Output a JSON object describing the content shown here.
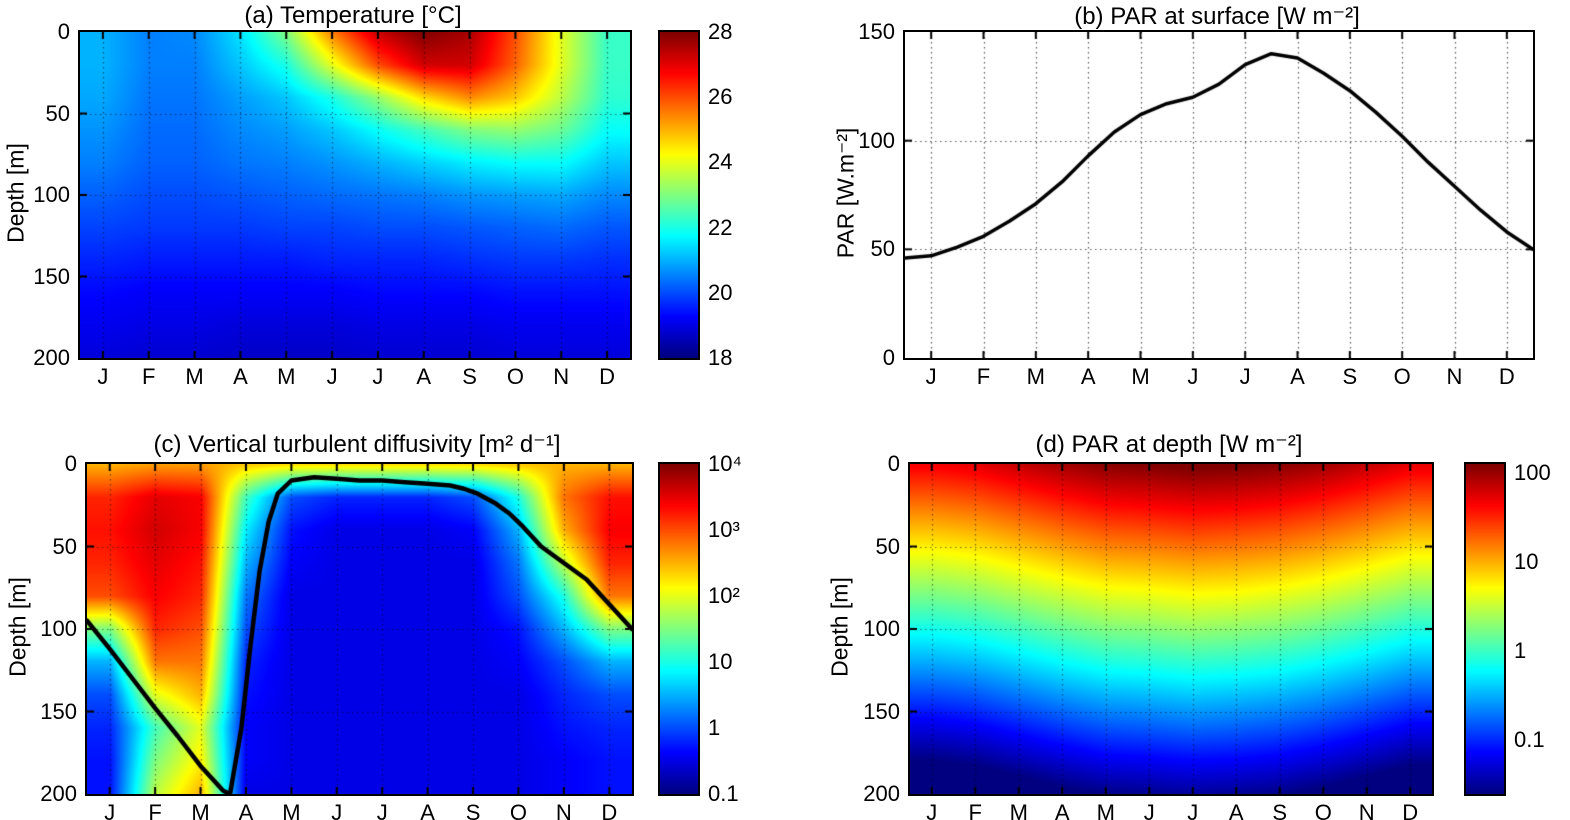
{
  "months": [
    "J",
    "F",
    "M",
    "A",
    "M",
    "J",
    "J",
    "A",
    "S",
    "O",
    "N",
    "D"
  ],
  "colors": {
    "frame": "#000000",
    "line": "#000000",
    "background": "#ffffff",
    "colormap": "jet"
  },
  "chart_data": [
    {
      "panel": "a",
      "type": "heatmap",
      "title": "(a) Temperature [°C]",
      "ylabel": "Depth [m]",
      "x_tick_labels": [
        "J",
        "F",
        "M",
        "A",
        "M",
        "J",
        "J",
        "A",
        "S",
        "O",
        "N",
        "D"
      ],
      "y_ticks": [
        0,
        50,
        100,
        150,
        200
      ],
      "ylim": [
        0,
        200
      ],
      "scale": "linear",
      "zlim": [
        18,
        28
      ],
      "colorbar_ticks": [
        28,
        26,
        24,
        22,
        20,
        18
      ],
      "depths": [
        0,
        20,
        40,
        60,
        80,
        100,
        120,
        140,
        160,
        180,
        200
      ],
      "values": [
        [
          21.0,
          20.5,
          20.6,
          21.5,
          23.0,
          25.5,
          27.3,
          28.0,
          27.6,
          26.0,
          24.0,
          22.3
        ],
        [
          21.0,
          20.5,
          20.5,
          21.2,
          22.0,
          24.0,
          26.0,
          27.2,
          27.2,
          25.8,
          24.0,
          22.3
        ],
        [
          20.9,
          20.4,
          20.4,
          20.8,
          21.2,
          22.0,
          23.2,
          24.6,
          25.4,
          24.8,
          23.6,
          22.2
        ],
        [
          20.7,
          20.3,
          20.3,
          20.6,
          20.8,
          21.2,
          21.8,
          22.4,
          23.0,
          23.2,
          22.8,
          21.8
        ],
        [
          20.5,
          20.2,
          20.2,
          20.4,
          20.5,
          20.7,
          21.0,
          21.3,
          21.6,
          21.8,
          21.8,
          21.2
        ],
        [
          20.2,
          20.0,
          20.0,
          20.1,
          20.2,
          20.3,
          20.4,
          20.5,
          20.7,
          20.8,
          20.9,
          20.6
        ],
        [
          19.9,
          19.8,
          19.8,
          19.8,
          19.9,
          19.9,
          20.0,
          20.0,
          20.1,
          20.2,
          20.3,
          20.1
        ],
        [
          19.6,
          19.5,
          19.5,
          19.5,
          19.5,
          19.6,
          19.6,
          19.6,
          19.7,
          19.8,
          19.8,
          19.7
        ],
        [
          19.3,
          19.2,
          19.2,
          19.2,
          19.2,
          19.2,
          19.3,
          19.3,
          19.3,
          19.4,
          19.4,
          19.4
        ],
        [
          19.1,
          19.0,
          19.0,
          18.9,
          18.9,
          18.9,
          19.0,
          19.0,
          19.0,
          19.1,
          19.1,
          19.1
        ],
        [
          18.9,
          18.8,
          18.8,
          18.7,
          18.7,
          18.7,
          18.8,
          18.8,
          18.8,
          18.9,
          18.9,
          18.9
        ]
      ]
    },
    {
      "panel": "b",
      "type": "line",
      "title": "(b) PAR at surface [W m⁻²]",
      "ylabel": "PAR [W.m⁻²]",
      "x_tick_labels": [
        "J",
        "F",
        "M",
        "A",
        "M",
        "J",
        "J",
        "A",
        "S",
        "O",
        "N",
        "D"
      ],
      "y_ticks": [
        0,
        50,
        100,
        150
      ],
      "ylim": [
        0,
        150
      ],
      "xlim": [
        0,
        12
      ],
      "x": [
        0,
        0.5,
        1,
        1.5,
        2,
        2.5,
        3,
        3.5,
        4,
        4.5,
        5,
        5.5,
        6,
        6.5,
        7,
        7.5,
        8,
        8.5,
        9,
        9.5,
        10,
        10.5,
        11,
        11.5,
        12
      ],
      "y": [
        46,
        47,
        51,
        56,
        63,
        71,
        81,
        93,
        104,
        112,
        117,
        120,
        126,
        135,
        140,
        138,
        131,
        123,
        113,
        102,
        90,
        79,
        68,
        58,
        50
      ]
    },
    {
      "panel": "c",
      "type": "heatmap",
      "title": "(c) Vertical turbulent diffusivity [m² d⁻¹]",
      "ylabel": "Depth [m]",
      "x_tick_labels": [
        "J",
        "F",
        "M",
        "A",
        "M",
        "J",
        "J",
        "A",
        "S",
        "O",
        "N",
        "D"
      ],
      "y_ticks": [
        0,
        50,
        100,
        150,
        200
      ],
      "ylim": [
        0,
        200
      ],
      "scale": "log10",
      "zlim_log10": [
        -1,
        4
      ],
      "colorbar_ticks_log10": [
        4,
        3,
        2,
        1,
        0,
        -1
      ],
      "colorbar_tick_labels": [
        "10⁴",
        "10³",
        "10²",
        "10",
        "1",
        "0.1"
      ],
      "depths": [
        0,
        20,
        40,
        60,
        80,
        100,
        120,
        140,
        160,
        180,
        200
      ],
      "values_log10": [
        [
          2.5,
          2.6,
          2.6,
          2.4,
          2.3,
          2.3,
          2.3,
          2.3,
          2.3,
          2.4,
          2.5,
          2.5
        ],
        [
          3.2,
          3.5,
          3.4,
          1.2,
          0.0,
          -0.2,
          -0.2,
          -0.2,
          0.0,
          1.0,
          2.8,
          3.3
        ],
        [
          3.3,
          3.6,
          3.4,
          0.8,
          -0.3,
          -0.5,
          -0.5,
          -0.5,
          -0.4,
          0.5,
          2.5,
          3.4
        ],
        [
          3.2,
          3.5,
          3.3,
          0.5,
          -0.4,
          -0.5,
          -0.5,
          -0.5,
          -0.5,
          0.2,
          1.8,
          3.2
        ],
        [
          3.0,
          3.4,
          3.2,
          0.2,
          -0.5,
          -0.5,
          -0.5,
          -0.5,
          -0.5,
          0.0,
          1.0,
          2.8
        ],
        [
          1.5,
          3.2,
          3.0,
          0.0,
          -0.5,
          -0.5,
          -0.5,
          -0.5,
          -0.5,
          -0.3,
          0.5,
          1.5
        ],
        [
          0.5,
          2.8,
          2.8,
          -0.2,
          -0.5,
          -0.5,
          -0.5,
          -0.5,
          -0.5,
          -0.4,
          0.0,
          0.5
        ],
        [
          0.0,
          2.0,
          2.5,
          -0.3,
          -0.5,
          -0.5,
          -0.5,
          -0.5,
          -0.5,
          -0.5,
          -0.2,
          0.0
        ],
        [
          -0.2,
          1.2,
          2.0,
          -0.4,
          -0.5,
          -0.5,
          -0.5,
          -0.5,
          -0.5,
          -0.5,
          -0.3,
          -0.2
        ],
        [
          -0.3,
          1.5,
          2.2,
          -0.4,
          -0.5,
          -0.5,
          -0.5,
          -0.5,
          -0.5,
          -0.5,
          -0.4,
          -0.3
        ],
        [
          -0.3,
          1.8,
          2.5,
          -0.5,
          -0.5,
          -0.5,
          -0.5,
          -0.5,
          -0.5,
          -0.5,
          -0.4,
          -0.3
        ]
      ],
      "mixed_layer_depth_line": {
        "x": [
          0,
          0.5,
          1,
          1.5,
          2,
          2.5,
          3,
          3.15,
          3.4,
          3.6,
          3.8,
          4,
          4.2,
          4.5,
          5,
          5.5,
          6,
          6.5,
          7,
          7.5,
          8,
          8.3,
          8.6,
          9,
          9.3,
          9.6,
          10,
          10.5,
          11,
          11.5,
          12
        ],
        "depth": [
          95,
          112,
          130,
          148,
          165,
          183,
          198,
          200,
          160,
          110,
          65,
          35,
          18,
          10,
          8,
          9,
          10,
          10,
          11,
          12,
          13,
          15,
          18,
          24,
          30,
          38,
          50,
          60,
          70,
          85,
          100
        ]
      }
    },
    {
      "panel": "d",
      "type": "heatmap",
      "title": "(d) PAR at depth [W m⁻²]",
      "ylabel": "Depth [m]",
      "x_tick_labels": [
        "J",
        "F",
        "M",
        "A",
        "M",
        "J",
        "J",
        "A",
        "S",
        "O",
        "N",
        "D"
      ],
      "y_ticks": [
        0,
        50,
        100,
        150,
        200
      ],
      "ylim": [
        0,
        200
      ],
      "scale": "log10",
      "zlim_log10": [
        -1.6,
        2.1
      ],
      "colorbar_ticks_log10": [
        2,
        1,
        0,
        -1
      ],
      "colorbar_tick_labels": [
        "100",
        "10",
        "1",
        "0.1"
      ],
      "depths": [
        0,
        20,
        40,
        60,
        80,
        100,
        120,
        140,
        160,
        180,
        200
      ],
      "values_log10": [
        [
          1.67,
          1.73,
          1.85,
          1.97,
          2.07,
          2.1,
          2.15,
          2.12,
          2.07,
          1.98,
          1.86,
          1.73
        ],
        [
          1.31,
          1.37,
          1.49,
          1.61,
          1.71,
          1.74,
          1.78,
          1.76,
          1.71,
          1.62,
          1.5,
          1.37
        ],
        [
          0.94,
          1.0,
          1.12,
          1.24,
          1.34,
          1.37,
          1.42,
          1.39,
          1.34,
          1.25,
          1.13,
          1.0
        ],
        [
          0.58,
          0.64,
          0.76,
          0.88,
          0.98,
          1.01,
          1.05,
          1.03,
          0.98,
          0.89,
          0.77,
          0.64
        ],
        [
          0.22,
          0.28,
          0.4,
          0.51,
          0.61,
          0.64,
          0.69,
          0.67,
          0.61,
          0.53,
          0.41,
          0.28
        ],
        [
          -0.15,
          -0.09,
          0.03,
          0.15,
          0.25,
          0.28,
          0.33,
          0.3,
          0.25,
          0.16,
          0.04,
          -0.09
        ],
        [
          -0.51,
          -0.45,
          -0.33,
          -0.21,
          -0.11,
          -0.08,
          -0.04,
          -0.06,
          -0.11,
          -0.2,
          -0.32,
          -0.45
        ],
        [
          -0.88,
          -0.82,
          -0.7,
          -0.58,
          -0.48,
          -0.45,
          -0.4,
          -0.43,
          -0.48,
          -0.57,
          -0.69,
          -0.82
        ],
        [
          -1.24,
          -1.18,
          -1.06,
          -0.94,
          -0.84,
          -0.81,
          -0.76,
          -0.79,
          -0.84,
          -0.93,
          -1.05,
          -1.18
        ],
        [
          -1.6,
          -1.54,
          -1.42,
          -1.3,
          -1.2,
          -1.17,
          -1.13,
          -1.15,
          -1.2,
          -1.29,
          -1.41,
          -1.54
        ],
        [
          -1.97,
          -1.91,
          -1.79,
          -1.67,
          -1.57,
          -1.54,
          -1.49,
          -1.52,
          -1.57,
          -1.66,
          -1.78,
          -1.91
        ]
      ]
    }
  ]
}
